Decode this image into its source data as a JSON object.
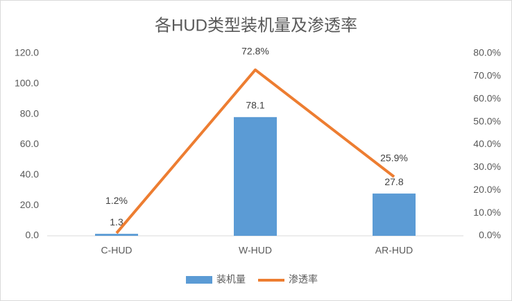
{
  "chart_data": {
    "type": "bar-line",
    "title": "各HUD类型装机量及渗透率",
    "categories": [
      "C-HUD",
      "W-HUD",
      "AR-HUD"
    ],
    "series": [
      {
        "name": "装机量",
        "type": "bar",
        "color": "#5b9bd5",
        "values": [
          1.3,
          78.1,
          27.8
        ]
      },
      {
        "name": "渗透率",
        "type": "line",
        "axis": "y2",
        "color": "#ed7d31",
        "values": [
          1.2,
          72.8,
          25.9
        ],
        "value_labels": [
          "1.2%",
          "72.8%",
          "25.9%"
        ]
      }
    ],
    "ylim": [
      0,
      120
    ],
    "yticks": [
      {
        "value": 0,
        "label": "0.0"
      },
      {
        "value": 20,
        "label": "20.0"
      },
      {
        "value": 40,
        "label": "40.0"
      },
      {
        "value": 60,
        "label": "60.0"
      },
      {
        "value": 80,
        "label": "80.0"
      },
      {
        "value": 100,
        "label": "100.0"
      },
      {
        "value": 120,
        "label": "120.0"
      }
    ],
    "y2lim": [
      0,
      80
    ],
    "y2ticks": [
      {
        "value": 0,
        "label": "0.0%"
      },
      {
        "value": 10,
        "label": "10.0%"
      },
      {
        "value": 20,
        "label": "20.0%"
      },
      {
        "value": 30,
        "label": "30.0%"
      },
      {
        "value": 40,
        "label": "40.0%"
      },
      {
        "value": 50,
        "label": "50.0%"
      },
      {
        "value": 60,
        "label": "60.0%"
      },
      {
        "value": 70,
        "label": "70.0%"
      },
      {
        "value": 80,
        "label": "80.0%"
      }
    ],
    "grid": false,
    "legend": "bottom"
  }
}
